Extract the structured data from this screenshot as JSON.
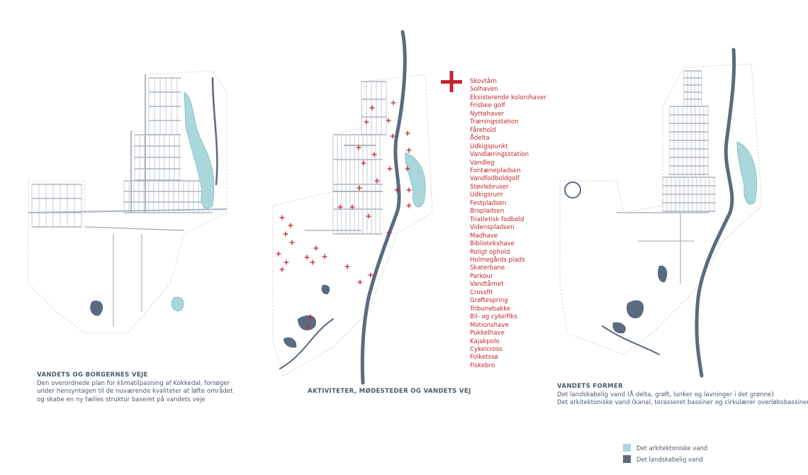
{
  "panels": [
    {
      "title": "VANDETS OG BORGERNES VEJE",
      "lines": [
        "Den overordnede plan for klimatilpasning af Kokkedal, forsøger",
        "under hensyntagen til de nuværende kvaliteter at løfte området",
        "og skabe en ny fælles struktur baseret på vandets veje"
      ]
    },
    {
      "title": "AKTIVITETER, MØDESTEDER OG VANDETS VEJ",
      "activities": [
        "Skovtårn",
        "Solhaven",
        "Eksisterende kolonihaver",
        "Frisbee golf",
        "Nyttehaver",
        "Træningsstation",
        "Fårehold",
        "Ådelta",
        "Udkigspunkt",
        "Vandlæringsstation",
        "Vandleg",
        "Fontænepladsen",
        "Vandfodboldgolf",
        "Støvlebruser",
        "Udkigsrum",
        "Festpladsen",
        "Bropladsen",
        "Triatletisk fodbold",
        "Videnspladsen",
        "Madhave",
        "Bibliotekshave",
        "Roligt ophold",
        "Holmegårds plads",
        "Skaterbane",
        "Parkour",
        "Vandtårnet",
        "Crossfit",
        "Grøftespring",
        "Tribunebakke",
        "Bil- og cykelfiks",
        "Motionshave",
        "Pukkelhave",
        "Kajakpolo",
        "Cykelcross",
        "Folketssø",
        "Fiskebro"
      ]
    },
    {
      "title": "VANDETS FORMER",
      "lines": [
        "Det landskabelig vand (Å delta, grøft, lunker og lavninger i det grønne)",
        "Det arkitektoniske vand (kanal, terasseret bassiner og cirkulærer overløbsbassiner)"
      ]
    }
  ],
  "legend": [
    {
      "label": "Det arkitektoniske vand",
      "color": "#a9d7dc"
    },
    {
      "label": "Det landskabelig vand",
      "color": "#5a6b80"
    }
  ]
}
